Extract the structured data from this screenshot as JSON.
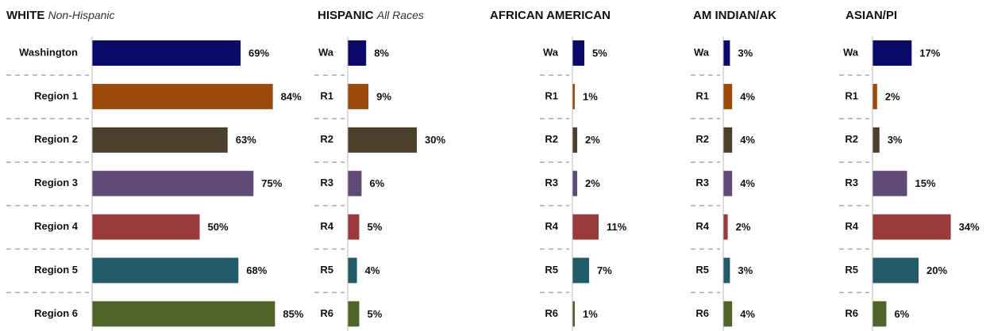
{
  "chart_data": [
    {
      "type": "bar",
      "title": "WHITE",
      "subtitle": "Non-Hispanic",
      "categories": [
        "Washington",
        "Region 1",
        "Region 2",
        "Region 3",
        "Region 4",
        "Region 5",
        "Region 6"
      ],
      "values": [
        69,
        84,
        63,
        75,
        50,
        68,
        85
      ],
      "value_labels": [
        "69%",
        "84%",
        "63%",
        "75%",
        "50%",
        "68%",
        "85%"
      ],
      "colors": [
        "#0a0a6b",
        "#9c4a0c",
        "#4a402c",
        "#5f4a78",
        "#9a3a3c",
        "#225b68",
        "#4f6429"
      ]
    },
    {
      "type": "bar",
      "title": "HISPANIC",
      "subtitle": "All Races",
      "categories": [
        "Wa",
        "R1",
        "R2",
        "R3",
        "R4",
        "R5",
        "R6"
      ],
      "values": [
        8,
        9,
        30,
        6,
        5,
        4,
        5
      ],
      "value_labels": [
        "8%",
        "9%",
        "30%",
        "6%",
        "5%",
        "4%",
        "5%"
      ],
      "colors": [
        "#0a0a6b",
        "#9c4a0c",
        "#4a402c",
        "#5f4a78",
        "#9a3a3c",
        "#225b68",
        "#4f6429"
      ]
    },
    {
      "type": "bar",
      "title": "AFRICAN AMERICAN",
      "categories": [
        "Wa",
        "R1",
        "R2",
        "R3",
        "R4",
        "R5",
        "R6"
      ],
      "values": [
        5,
        1,
        2,
        2,
        11,
        7,
        1
      ],
      "value_labels": [
        "5%",
        "1%",
        "2%",
        "2%",
        "11%",
        "7%",
        "1%"
      ],
      "colors": [
        "#0a0a6b",
        "#9c4a0c",
        "#4a402c",
        "#5f4a78",
        "#9a3a3c",
        "#225b68",
        "#4f6429"
      ]
    },
    {
      "type": "bar",
      "title": "AM INDIAN/AK",
      "categories": [
        "Wa",
        "R1",
        "R2",
        "R3",
        "R4",
        "R5",
        "R6"
      ],
      "values": [
        3,
        4,
        4,
        4,
        2,
        3,
        4
      ],
      "value_labels": [
        "3%",
        "4%",
        "4%",
        "4%",
        "2%",
        "3%",
        "4%"
      ],
      "colors": [
        "#0a0a6b",
        "#9c4a0c",
        "#4a402c",
        "#5f4a78",
        "#9a3a3c",
        "#225b68",
        "#4f6429"
      ]
    },
    {
      "type": "bar",
      "title": "ASIAN/PI",
      "categories": [
        "Wa",
        "R1",
        "R2",
        "R3",
        "R4",
        "R5",
        "R6"
      ],
      "values": [
        17,
        2,
        3,
        15,
        34,
        20,
        6
      ],
      "value_labels": [
        "17%",
        "2%",
        "3%",
        "15%",
        "34%",
        "20%",
        "6%"
      ],
      "colors": [
        "#0a0a6b",
        "#9c4a0c",
        "#4a402c",
        "#5f4a78",
        "#9a3a3c",
        "#225b68",
        "#4f6429"
      ]
    }
  ]
}
